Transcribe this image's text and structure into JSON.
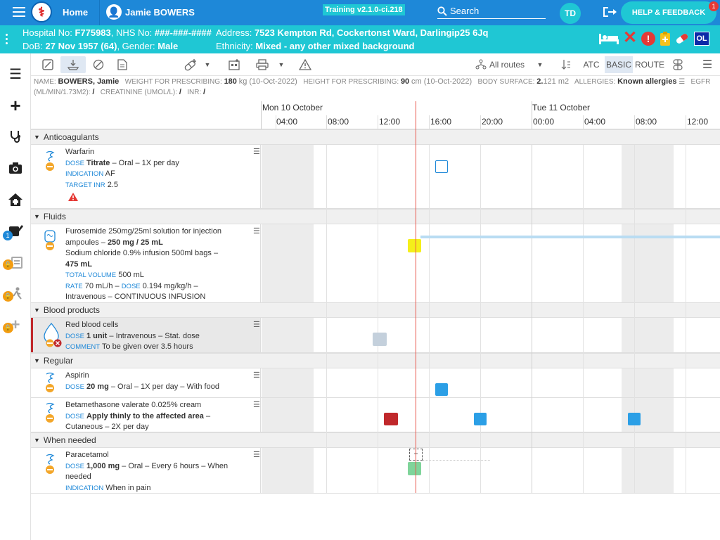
{
  "topbar": {
    "home_label": "Home",
    "user_name": "Jamie BOWERS",
    "env_label": "Training v2.1.0-ci.218",
    "search_placeholder": "Search",
    "user_initials": "TD",
    "help_label": "HELP & FEEDBACK",
    "help_badge_count": "1"
  },
  "banner": {
    "hospital_label": "Hospital No:",
    "hospital_no": "F775983",
    "nhs_label": "NHS No:",
    "nhs_no": "###-###-####",
    "address_label": "Address:",
    "address": "7523 Kempton Rd, Cockertonst Ward, Darlingip25 6Jq",
    "dob_label": "DoB:",
    "dob": "27 Nov 1957 (64)",
    "gender_label": "Gender:",
    "gender": "Male",
    "ethnicity_label": "Ethnicity:",
    "ethnicity": "Mixed - any other mixed background",
    "ol_label": "OL"
  },
  "sidebar_badge": "1",
  "toolbar": {
    "routes_label": "All routes",
    "atc_label": "ATC",
    "basic_label": "BASIC",
    "route_label": "ROUTE"
  },
  "info": {
    "name_label": "NAME:",
    "name": "BOWERS, Jamie",
    "weight_label": "WEIGHT FOR PRESCRIBING:",
    "weight": "180",
    "weight_unit": "kg (10-Oct-2022)",
    "height_label": "HEIGHT FOR PRESCRIBING:",
    "height": "90",
    "height_unit": "cm (10-Oct-2022)",
    "bsa_label": "BODY SURFACE:",
    "bsa": "2.",
    "bsa_rest": "121 m2",
    "allergies_label": "ALLERGIES:",
    "allergies": "Known allergies",
    "egfr_label": "EGFR",
    "egfr_unit": "(ML/MIN/1.73M2):",
    "egfr_value": "/",
    "creat_label": "CREATININE (UMOL/L):",
    "creat_value": "/",
    "inr_label": "INR:",
    "inr_value": "/"
  },
  "timeline": {
    "days": [
      "Mon 10 October",
      "Tue 11 October"
    ],
    "hours": [
      "04:00",
      "08:00",
      "12:00",
      "16:00",
      "20:00",
      "00:00",
      "04:00",
      "08:00",
      "12:00"
    ]
  },
  "sections": [
    {
      "name": "Anticoagulants"
    },
    {
      "name": "Fluids"
    },
    {
      "name": "Blood products"
    },
    {
      "name": "Regular"
    },
    {
      "name": "When needed"
    }
  ],
  "drugs": {
    "warfarin": {
      "name": "Warfarin",
      "dose_label": "DOSE",
      "dose": "Titrate",
      "dose_rest": "– Oral – 1X per day",
      "indication_label": "INDICATION",
      "indication": "AF",
      "inr_label": "TARGET INR",
      "inr": "2.5"
    },
    "furosemide": {
      "line1": "Furosemide 250mg/25ml solution for injection",
      "line2a": "ampoules –",
      "line2b": "250 mg / 25 mL",
      "line3": "Sodium chloride 0.9% infusion 500ml bags –",
      "line4": "475 mL",
      "volume_label": "TOTAL VOLUME",
      "volume": "500 mL",
      "rate_label": "RATE",
      "rate": "70 mL/h –",
      "dose_label": "DOSE",
      "dose": "0.194 mg/kg/h –",
      "line7": "Intravenous – CONTINUOUS INFUSION"
    },
    "rbc": {
      "name": "Red blood cells",
      "dose_label": "DOSE",
      "dose": "1 unit",
      "dose_rest": "– Intravenous – Stat. dose",
      "comment_label": "COMMENT",
      "comment": "To be given over 3.5 hours"
    },
    "aspirin": {
      "name": "Aspirin",
      "dose_label": "DOSE",
      "dose": "20 mg",
      "dose_rest": "– Oral – 1X per day – With food"
    },
    "betamethasone": {
      "name": "Betamethasone valerate 0.025% cream",
      "dose_label": "DOSE",
      "dose": "Apply thinly to the affected area",
      "dose_rest": "–",
      "line3": "Cutaneous – 2X per day"
    },
    "paracetamol": {
      "name": "Paracetamol",
      "dose_label": "DOSE",
      "dose": "1,000 mg",
      "dose_rest": "– Oral – Every 6 hours – When",
      "line3": "needed",
      "indication_label": "INDICATION",
      "indication": "When in pain"
    }
  },
  "colors": {
    "topbar": "#1e88d8",
    "banner": "#1fc7d4",
    "planned": "#2b9fe6",
    "missed": "#c0282b",
    "given": "#7fd49a",
    "infusion": "#f5ef1a",
    "stat": "#c4d0dc",
    "now_line": "#e8554a"
  }
}
